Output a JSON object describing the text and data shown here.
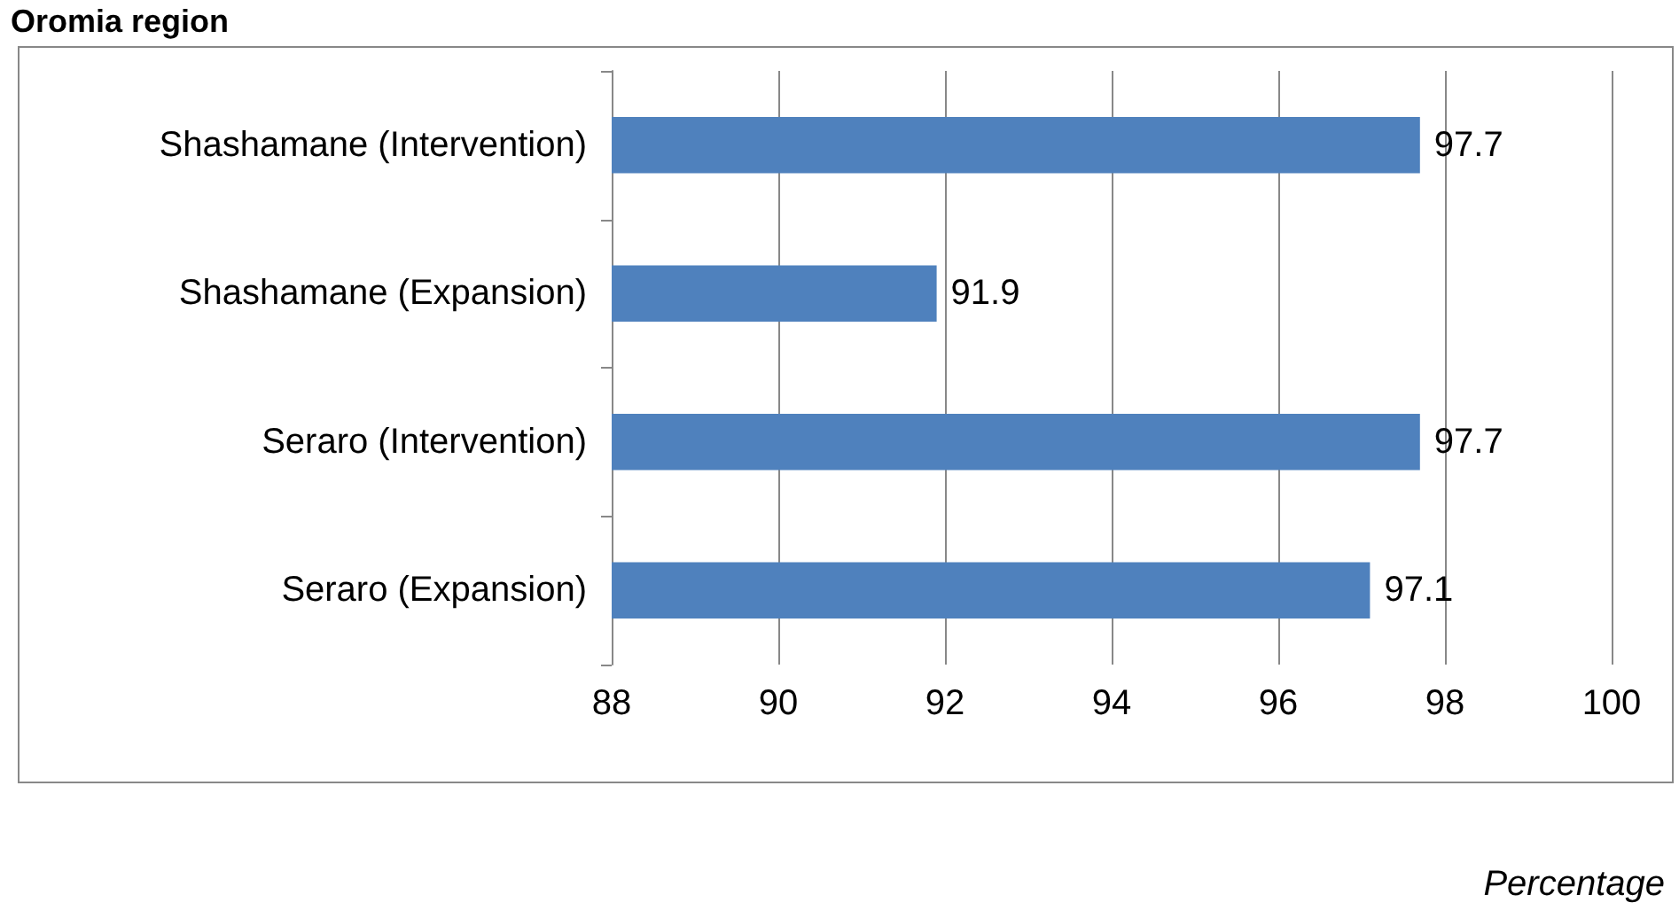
{
  "chart_data": {
    "type": "bar",
    "orientation": "horizontal",
    "title": "Oromia region",
    "categories": [
      "Shashamane (Intervention)",
      "Shashamane (Expansion)",
      "Seraro (Intervention)",
      "Seraro (Expansion)"
    ],
    "values": [
      97.7,
      91.9,
      97.7,
      97.1
    ],
    "color": "#4f81bd",
    "xlim": [
      88,
      100
    ],
    "xticks": [
      88,
      90,
      92,
      94,
      96,
      98,
      100
    ],
    "grid": "x",
    "data_labels": true,
    "annotations": [
      "Percentage"
    ]
  }
}
